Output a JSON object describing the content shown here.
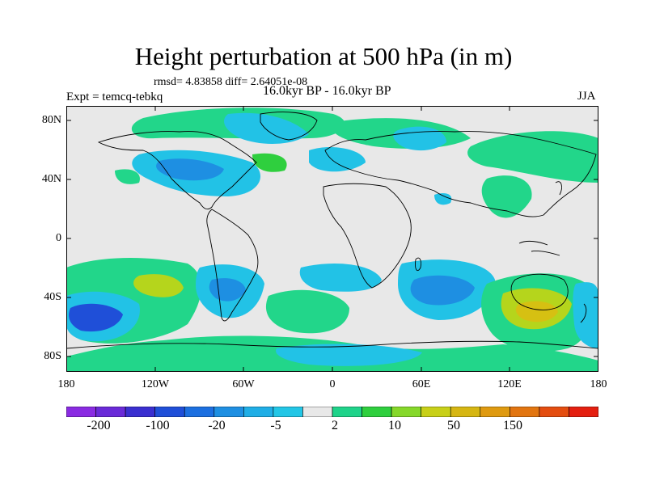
{
  "title": "Height perturbation at 500 hPa (in m)",
  "stats": "rmsd= 4.83858  diff= 2.64051e-08",
  "experiment": "Expt = temcq-tebkq",
  "period": "16.0kyr BP - 16.0kyr BP",
  "season": "JJA",
  "lat_labels": [
    "80N",
    "40N",
    "0",
    "40S",
    "80S"
  ],
  "lon_labels": [
    "180",
    "120W",
    "60W",
    "0",
    "60E",
    "120E",
    "180"
  ],
  "colorbar": {
    "labels": [
      "-200",
      "-100",
      "-20",
      "-5",
      "2",
      "10",
      "50",
      "150"
    ],
    "colors": [
      "#8a2be2",
      "#6a2ad8",
      "#3a2fd0",
      "#1f4fd8",
      "#1c6fe0",
      "#1e8fe2",
      "#20aee6",
      "#22c6e6",
      "#e8e8e8",
      "#1fd38a",
      "#2fcf3e",
      "#86d82a",
      "#c8d018",
      "#d6b612",
      "#df9a10",
      "#e27510",
      "#e44d10",
      "#e41f10"
    ]
  },
  "map_colors": {
    "ocean_background": "#e8e8e8",
    "positive_small": "#22d68a",
    "positive_medium": "#2fcf3e",
    "positive_large": "#b5d51c",
    "positive_max": "#d6c012",
    "negative_small": "#22c2e6",
    "negative_medium": "#1e8fe2",
    "negative_large": "#1c6fe0",
    "negative_max": "#1f4fd8",
    "coastline": "#000000"
  }
}
